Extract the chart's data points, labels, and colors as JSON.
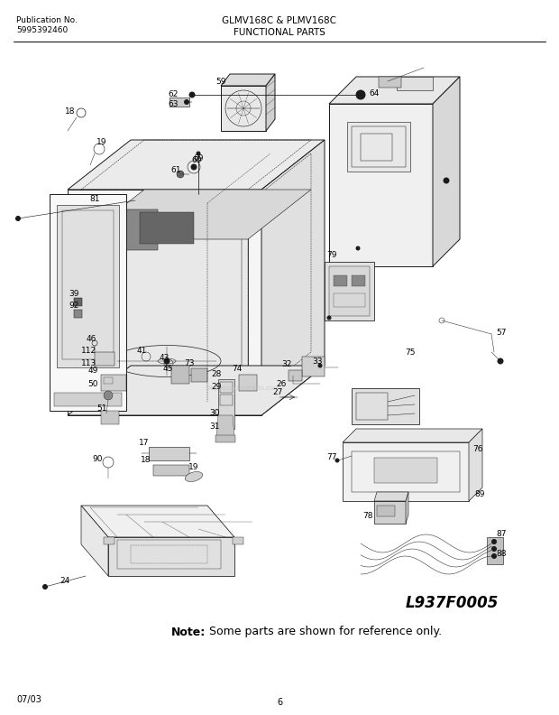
{
  "bg_color": "#ffffff",
  "title_center": "GLMV168C & PLMV168C",
  "title_sub": "FUNCTIONAL PARTS",
  "pub_no_label": "Publication No.",
  "pub_no_value": "5995392460",
  "diagram_id": "L937F0005",
  "note_bold": "Note:",
  "note_text": " Some parts are shown for reference only.",
  "footer_left": "07/03",
  "footer_center": "6",
  "line_color": "#1a1a1a",
  "lw": 0.7
}
